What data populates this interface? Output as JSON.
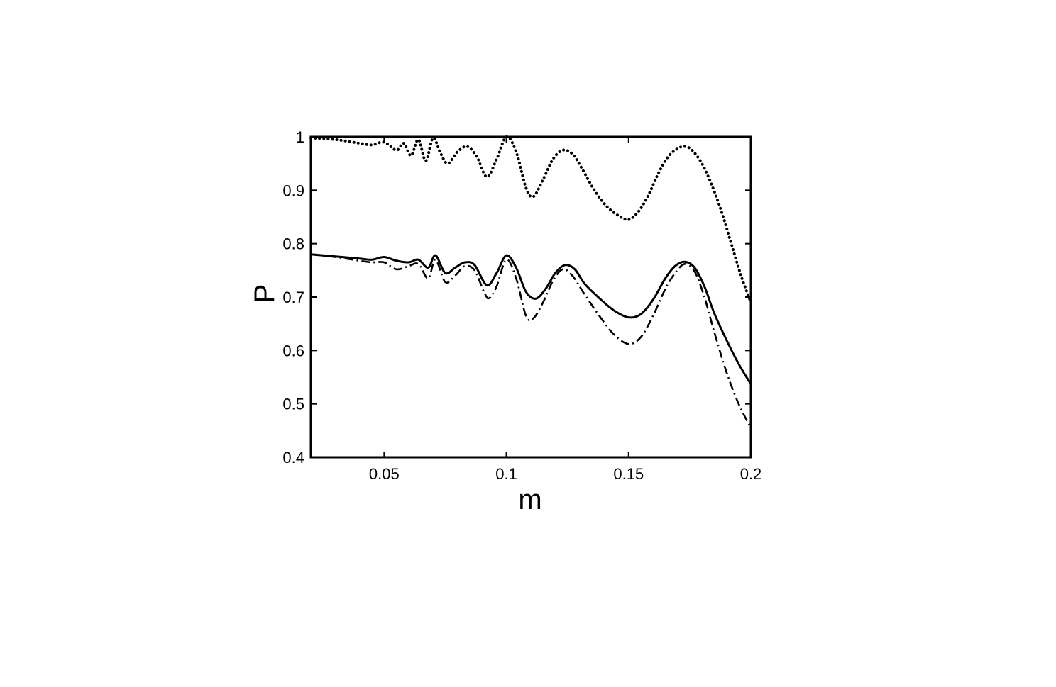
{
  "chart_data": {
    "type": "line",
    "title": "",
    "xlabel": "m",
    "ylabel": "P",
    "xlim": [
      0.02,
      0.2
    ],
    "ylim": [
      0.4,
      1.0
    ],
    "xticks": [
      0.05,
      0.1,
      0.15,
      0.2
    ],
    "xtick_labels": [
      "0.05",
      "0.1",
      "0.15",
      "0.2"
    ],
    "yticks": [
      0.4,
      0.5,
      0.6,
      0.7,
      0.8,
      0.9,
      1.0
    ],
    "ytick_labels": [
      "0.4",
      "0.5",
      "0.6",
      "0.7",
      "0.8",
      "0.9",
      "1"
    ],
    "grid": false,
    "legend": "none",
    "series": [
      {
        "style": "dotted",
        "x": [
          0.02,
          0.03,
          0.04,
          0.045,
          0.05,
          0.055,
          0.058,
          0.061,
          0.064,
          0.067,
          0.07,
          0.073,
          0.076,
          0.08,
          0.084,
          0.088,
          0.092,
          0.096,
          0.1,
          0.104,
          0.108,
          0.111,
          0.115,
          0.119,
          0.123,
          0.127,
          0.131,
          0.136,
          0.141,
          0.146,
          0.15,
          0.154,
          0.158,
          0.162,
          0.166,
          0.17,
          0.173,
          0.176,
          0.18,
          0.184,
          0.188,
          0.192,
          0.196,
          0.2
        ],
        "values": [
          0.998,
          0.995,
          0.988,
          0.985,
          0.99,
          0.975,
          0.988,
          0.965,
          0.995,
          0.955,
          0.998,
          0.97,
          0.95,
          0.972,
          0.982,
          0.962,
          0.925,
          0.958,
          1.0,
          0.972,
          0.905,
          0.888,
          0.92,
          0.958,
          0.975,
          0.968,
          0.94,
          0.9,
          0.87,
          0.852,
          0.845,
          0.86,
          0.89,
          0.93,
          0.962,
          0.978,
          0.982,
          0.975,
          0.95,
          0.91,
          0.86,
          0.8,
          0.74,
          0.69
        ]
      },
      {
        "style": "solid",
        "x": [
          0.02,
          0.03,
          0.04,
          0.045,
          0.05,
          0.055,
          0.06,
          0.064,
          0.068,
          0.071,
          0.075,
          0.079,
          0.083,
          0.087,
          0.092,
          0.096,
          0.1,
          0.104,
          0.108,
          0.112,
          0.116,
          0.12,
          0.124,
          0.128,
          0.132,
          0.138,
          0.144,
          0.15,
          0.155,
          0.16,
          0.165,
          0.169,
          0.173,
          0.177,
          0.181,
          0.185,
          0.19,
          0.195,
          0.2
        ],
        "values": [
          0.78,
          0.776,
          0.772,
          0.77,
          0.775,
          0.768,
          0.765,
          0.77,
          0.755,
          0.778,
          0.745,
          0.755,
          0.765,
          0.76,
          0.722,
          0.745,
          0.778,
          0.755,
          0.71,
          0.697,
          0.715,
          0.745,
          0.76,
          0.752,
          0.725,
          0.698,
          0.675,
          0.662,
          0.668,
          0.695,
          0.735,
          0.758,
          0.766,
          0.755,
          0.72,
          0.67,
          0.62,
          0.575,
          0.537
        ]
      },
      {
        "style": "dash-dot",
        "x": [
          0.02,
          0.03,
          0.04,
          0.045,
          0.05,
          0.055,
          0.06,
          0.064,
          0.068,
          0.071,
          0.075,
          0.079,
          0.083,
          0.087,
          0.091,
          0.093,
          0.096,
          0.1,
          0.104,
          0.108,
          0.111,
          0.115,
          0.119,
          0.123,
          0.127,
          0.132,
          0.138,
          0.144,
          0.15,
          0.155,
          0.16,
          0.165,
          0.169,
          0.173,
          0.177,
          0.181,
          0.185,
          0.19,
          0.195,
          0.2
        ],
        "values": [
          0.78,
          0.775,
          0.768,
          0.765,
          0.765,
          0.752,
          0.758,
          0.762,
          0.735,
          0.77,
          0.728,
          0.74,
          0.758,
          0.75,
          0.708,
          0.698,
          0.72,
          0.77,
          0.735,
          0.665,
          0.66,
          0.69,
          0.73,
          0.752,
          0.74,
          0.705,
          0.665,
          0.63,
          0.612,
          0.625,
          0.665,
          0.715,
          0.745,
          0.762,
          0.748,
          0.7,
          0.635,
          0.56,
          0.5,
          0.455
        ]
      }
    ]
  }
}
